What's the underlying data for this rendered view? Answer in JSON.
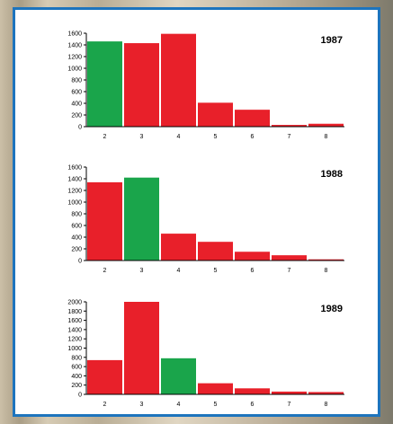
{
  "colors": {
    "highlight": "#1aa54b",
    "bar": "#e8202a",
    "border": "#1d74bd"
  },
  "chart_data": [
    {
      "type": "bar",
      "title": "1987",
      "categories": [
        "2",
        "3",
        "4",
        "5",
        "6",
        "7",
        "8"
      ],
      "values": [
        1460,
        1430,
        1590,
        410,
        290,
        30,
        50
      ],
      "highlight_index": 0,
      "ylim": [
        0,
        1600
      ],
      "yticks": [
        "0",
        "200",
        "400",
        "600",
        "800",
        "1000",
        "1200",
        "1400",
        "1600"
      ],
      "grid": false
    },
    {
      "type": "bar",
      "title": "1988",
      "categories": [
        "2",
        "3",
        "4",
        "5",
        "6",
        "7",
        "8"
      ],
      "values": [
        1340,
        1420,
        460,
        320,
        150,
        90,
        20
      ],
      "highlight_index": 1,
      "ylim": [
        0,
        1600
      ],
      "yticks": [
        "0",
        "200",
        "400",
        "600",
        "800",
        "1000",
        "1200",
        "1400",
        "1600"
      ],
      "grid": false
    },
    {
      "type": "bar",
      "title": "1989",
      "categories": [
        "2",
        "3",
        "4",
        "5",
        "6",
        "7",
        "8"
      ],
      "values": [
        740,
        2000,
        780,
        240,
        130,
        60,
        50
      ],
      "highlight_index": 2,
      "ylim": [
        0,
        2000
      ],
      "yticks": [
        "0",
        "200",
        "400",
        "600",
        "800",
        "1000",
        "1200",
        "1400",
        "1600",
        "1800",
        "2000"
      ],
      "grid": false
    }
  ]
}
